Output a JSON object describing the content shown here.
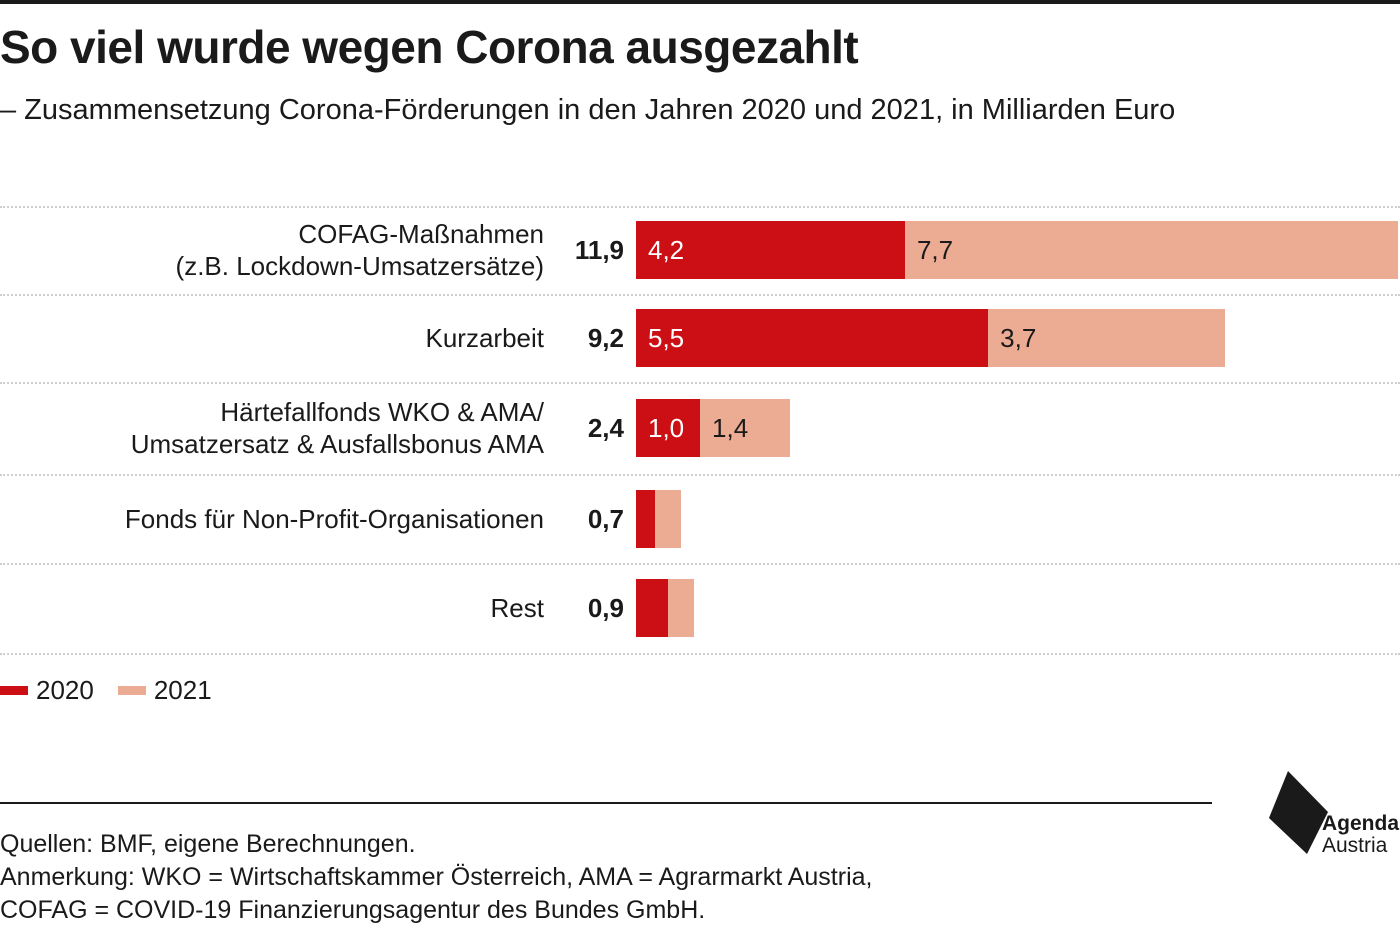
{
  "title": "So viel wurde wegen Corona ausgezahlt",
  "subtitle": "– Zusammensetzung Corona-Förderungen in den Jahren 2020 und 2021, in Milliarden Euro",
  "chart_data": {
    "type": "bar",
    "orientation": "horizontal",
    "stacked": true,
    "categories": [
      [
        "COFAG-Maßnahmen",
        "(z.B. Lockdown-Umsatzersätze)"
      ],
      [
        "Kurzarbeit"
      ],
      [
        "Härtefallfonds WKO & AMA/",
        "Umsatzersatz & Ausfallsbonus AMA"
      ],
      [
        "Fonds für Non-Profit-Organisationen"
      ],
      [
        "Rest"
      ]
    ],
    "totals": [
      "11,9",
      "9,2",
      "2,4",
      "0,7",
      "0,9"
    ],
    "series": [
      {
        "name": "2020",
        "color": "#cc0f14",
        "values": [
          4.2,
          5.5,
          1.0,
          0.3,
          0.5
        ],
        "labels": [
          "4,2",
          "5,5",
          "1,0",
          "",
          ""
        ]
      },
      {
        "name": "2021",
        "color": "#ecab93",
        "values": [
          7.7,
          3.7,
          1.4,
          0.4,
          0.4
        ],
        "labels": [
          "7,7",
          "3,7",
          "1,4",
          "",
          ""
        ]
      }
    ],
    "xlim": [
      0,
      11.9
    ],
    "grid": false,
    "legend": "bottom-left"
  },
  "footer": {
    "sources": "Quellen: BMF, eigene Berechnungen.",
    "note_line1": "Anmerkung: WKO = Wirtschaftskammer Österreich, AMA = Agrarmarkt Austria,",
    "note_line2": "COFAG = COVID-19 Finanzierungsagentur des Bundes GmbH."
  },
  "logo": {
    "line1": "Agenda",
    "line2": "Austria"
  }
}
